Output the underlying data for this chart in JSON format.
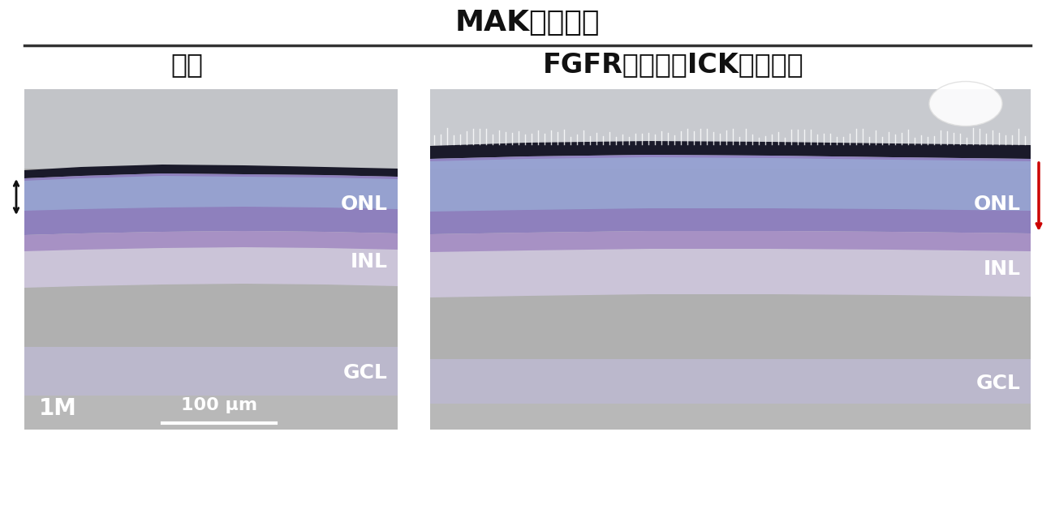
{
  "title": "MAK欠損網膜",
  "subtitle_left": "対照",
  "subtitle_right": "FGFR阻害剤（ICK活性化）",
  "bg_color": "#ffffff",
  "panel_bg": "#c8c8c8",
  "label_ONL_left": "ONL",
  "label_INL_left": "INL",
  "label_GCL_left": "GCL",
  "label_ONL_right": "ONL",
  "label_INL_right": "INL",
  "label_GCL_right": "GCL",
  "label_1M": "1M",
  "scale_bar_label": "100 μm",
  "title_fontsize": 26,
  "subtitle_fontsize": 24,
  "annotation_fontsize": 18,
  "small_label_fontsize": 20,
  "scale_fontsize": 16,
  "line_color": "#333333",
  "left_arrow_color": "#111111",
  "right_arrow_color": "#cc0000"
}
